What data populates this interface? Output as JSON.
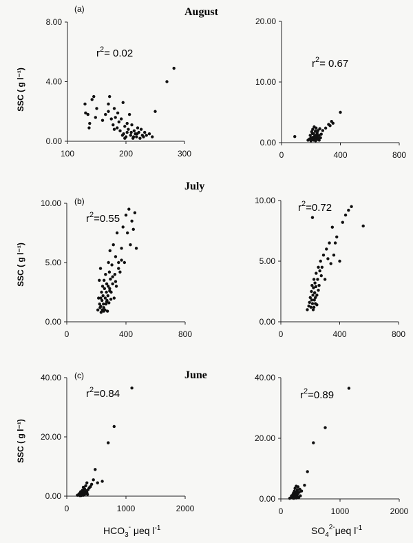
{
  "figure": {
    "rows": [
      {
        "tag": "(a)",
        "month": "August",
        "ylabel": "SSC ( g l⁻¹)"
      },
      {
        "tag": "(b)",
        "month": "July",
        "ylabel": "SSC ( g l⁻¹)"
      },
      {
        "tag": "(c)",
        "month": "June",
        "ylabel": "SSC ( g l⁻¹)"
      }
    ],
    "xlabels": {
      "left_base": "HCO",
      "left_sub": "3",
      "left_sup": "-",
      "left_tail": " μeq l",
      "left_exp": "-1",
      "right_base": "SO",
      "right_sub": "4",
      "right_sup": "2-",
      "right_tail": "μeq l",
      "right_exp": "-1"
    }
  },
  "chart_data": [
    {
      "type": "scatter",
      "panel": "a-left",
      "xlim": [
        100,
        300
      ],
      "ylim": [
        0,
        8
      ],
      "xticks": [
        "100",
        "200",
        "300"
      ],
      "yticks": [
        "0.00",
        "4.00",
        "8.00"
      ],
      "ytick_values": [
        0,
        4,
        8
      ],
      "xtick_values": [
        100,
        200,
        300
      ],
      "r2_base": "r",
      "r2_exp": "2",
      "r2_value": "= 0.02",
      "x": [
        130,
        135,
        138,
        142,
        145,
        148,
        131,
        137,
        150,
        160,
        165,
        170,
        172,
        175,
        178,
        180,
        182,
        185,
        188,
        190,
        192,
        195,
        196,
        198,
        200,
        202,
        204,
        206,
        208,
        210,
        212,
        214,
        216,
        218,
        220,
        222,
        224,
        226,
        228,
        230,
        232,
        235,
        240,
        245,
        250,
        270,
        282,
        170,
        180,
        186,
        194,
        198,
        202,
        209,
        213,
        219
      ],
      "y": [
        2.5,
        1.8,
        1.2,
        2.8,
        3.0,
        1.6,
        1.9,
        0.9,
        2.2,
        1.4,
        1.8,
        2.0,
        3.0,
        1.5,
        1.1,
        2.2,
        1.6,
        0.9,
        1.3,
        0.7,
        1.5,
        2.6,
        0.5,
        1.0,
        0.3,
        0.6,
        0.8,
        1.8,
        0.4,
        1.1,
        0.2,
        0.7,
        0.5,
        0.3,
        0.9,
        0.6,
        0.2,
        0.8,
        0.4,
        0.3,
        0.6,
        0.4,
        0.5,
        0.3,
        2.0,
        4.0,
        4.9,
        2.5,
        0.8,
        1.9,
        0.4,
        0.2,
        1.2,
        0.6,
        0.3,
        0.5
      ]
    },
    {
      "type": "scatter",
      "panel": "a-right",
      "xlim": [
        0,
        800
      ],
      "ylim": [
        0,
        20
      ],
      "xticks": [
        "0",
        "400",
        "800"
      ],
      "yticks": [
        "0.00",
        "10.00",
        "20.00"
      ],
      "ytick_values": [
        0,
        10,
        20
      ],
      "xtick_values": [
        0,
        400,
        800
      ],
      "r2_base": "r",
      "r2_exp": "2",
      "r2_value": "= 0.67",
      "x": [
        90,
        180,
        190,
        195,
        200,
        205,
        210,
        212,
        215,
        218,
        220,
        222,
        225,
        228,
        230,
        232,
        235,
        238,
        240,
        242,
        245,
        248,
        250,
        255,
        260,
        265,
        270,
        280,
        300,
        320,
        330,
        340,
        350,
        400,
        200,
        210,
        226,
        236,
        246,
        256
      ],
      "y": [
        1.0,
        0.4,
        0.6,
        1.2,
        0.3,
        1.8,
        0.5,
        2.2,
        0.9,
        1.5,
        0.4,
        2.6,
        1.1,
        0.7,
        1.9,
        0.3,
        2.4,
        1.3,
        0.6,
        1.6,
        0.9,
        2.0,
        0.5,
        1.2,
        2.3,
        0.8,
        1.4,
        2.0,
        2.4,
        3.0,
        2.8,
        3.5,
        3.2,
        5.0,
        0.8,
        1.5,
        0.5,
        1.0,
        0.7,
        0.4
      ]
    },
    {
      "type": "scatter",
      "panel": "b-left",
      "xlim": [
        0,
        800
      ],
      "ylim": [
        0,
        10
      ],
      "xticks": [
        "0",
        "400",
        "800"
      ],
      "yticks": [
        "0.00",
        "5.00",
        "10.00"
      ],
      "ytick_values": [
        0,
        5,
        10
      ],
      "xtick_values": [
        0,
        400,
        800
      ],
      "r2_base": "r",
      "r2_exp": "2",
      "r2_value": "=0.55",
      "x": [
        210,
        215,
        220,
        222,
        225,
        228,
        230,
        232,
        235,
        238,
        240,
        242,
        245,
        248,
        250,
        252,
        255,
        258,
        260,
        262,
        265,
        268,
        270,
        272,
        275,
        278,
        280,
        282,
        285,
        288,
        290,
        292,
        295,
        298,
        300,
        305,
        310,
        315,
        320,
        325,
        330,
        335,
        340,
        350,
        360,
        370,
        380,
        390,
        400,
        410,
        420,
        430,
        440,
        450,
        460,
        470,
        230,
        250,
        270,
        290,
        310,
        330,
        350,
        370
      ],
      "y": [
        1.0,
        2.0,
        3.5,
        1.5,
        1.2,
        4.5,
        2.0,
        0.8,
        2.5,
        1.8,
        1.0,
        3.0,
        2.2,
        1.5,
        1.2,
        3.5,
        2.8,
        1.0,
        2.0,
        4.0,
        1.5,
        2.5,
        3.2,
        1.8,
        0.9,
        2.2,
        3.0,
        5.0,
        1.6,
        4.2,
        2.8,
        6.0,
        3.6,
        1.9,
        2.5,
        4.8,
        3.2,
        6.5,
        2.0,
        4.0,
        5.5,
        3.0,
        7.5,
        5.0,
        4.2,
        6.2,
        8.0,
        5.0,
        9.0,
        7.5,
        9.5,
        6.5,
        8.5,
        7.8,
        9.2,
        6.2,
        1.3,
        0.9,
        1.7,
        2.6,
        3.8,
        3.4,
        4.5,
        5.2
      ]
    },
    {
      "type": "scatter",
      "panel": "b-right",
      "xlim": [
        0,
        800
      ],
      "ylim": [
        0,
        10
      ],
      "xticks": [
        "0",
        "400",
        "800"
      ],
      "yticks": [
        "0.00",
        "5.00",
        "10.00"
      ],
      "ytick_values": [
        0,
        5,
        10
      ],
      "xtick_values": [
        0,
        400,
        800
      ],
      "r2_base": "r",
      "r2_exp": "2",
      "r2_value": "=0.72",
      "x": [
        180,
        190,
        195,
        200,
        205,
        208,
        210,
        212,
        215,
        218,
        220,
        222,
        225,
        228,
        230,
        232,
        235,
        238,
        240,
        245,
        250,
        255,
        260,
        265,
        270,
        275,
        280,
        290,
        300,
        310,
        320,
        330,
        340,
        350,
        360,
        370,
        380,
        400,
        420,
        440,
        460,
        480,
        560,
        215,
        225,
        235,
        245,
        255
      ],
      "y": [
        1.0,
        1.3,
        1.6,
        2.0,
        1.2,
        2.5,
        1.8,
        3.0,
        1.5,
        2.2,
        1.0,
        2.8,
        3.5,
        1.8,
        2.4,
        3.2,
        1.5,
        2.9,
        4.0,
        2.2,
        3.5,
        4.5,
        3.0,
        4.2,
        5.0,
        3.8,
        4.5,
        5.5,
        3.5,
        6.0,
        5.2,
        6.5,
        4.8,
        7.8,
        5.5,
        6.5,
        7.0,
        5.0,
        8.2,
        8.8,
        9.2,
        9.5,
        7.9,
        8.6,
        1.2,
        2.0,
        1.4,
        2.6
      ]
    },
    {
      "type": "scatter",
      "panel": "c-left",
      "xlim": [
        0,
        2000
      ],
      "ylim": [
        0,
        40
      ],
      "xticks": [
        "0",
        "1000",
        "2000"
      ],
      "yticks": [
        "0.00",
        "20.00",
        "40.00"
      ],
      "ytick_values": [
        0,
        20,
        40
      ],
      "xtick_values": [
        0,
        1000,
        2000
      ],
      "r2_base": "r",
      "r2_exp": "2",
      "r2_value": "=0.84",
      "x": [
        180,
        200,
        210,
        220,
        225,
        230,
        235,
        240,
        245,
        250,
        255,
        260,
        265,
        270,
        275,
        280,
        285,
        290,
        295,
        300,
        310,
        320,
        330,
        340,
        350,
        360,
        380,
        400,
        420,
        450,
        480,
        520,
        600,
        700,
        800,
        1100,
        240,
        260,
        280,
        300,
        320,
        340
      ],
      "y": [
        0.3,
        0.5,
        0.8,
        0.2,
        1.0,
        0.6,
        1.5,
        0.4,
        0.9,
        1.2,
        0.3,
        0.7,
        2.0,
        0.5,
        1.1,
        3.0,
        0.8,
        1.6,
        0.4,
        2.5,
        1.0,
        3.5,
        1.8,
        4.5,
        0.6,
        2.2,
        2.8,
        3.2,
        4.0,
        5.5,
        9.0,
        4.5,
        5.0,
        18.0,
        23.5,
        36.5,
        0.2,
        0.4,
        0.3,
        0.6,
        0.9,
        1.3
      ]
    },
    {
      "type": "scatter",
      "panel": "c-right",
      "xlim": [
        0,
        2000
      ],
      "ylim": [
        0,
        40
      ],
      "xticks": [
        "0",
        "1000",
        "2000"
      ],
      "yticks": [
        "0.00",
        "20.00",
        "40.00"
      ],
      "ytick_values": [
        0,
        20,
        40
      ],
      "xtick_values": [
        0,
        1000,
        2000
      ],
      "r2_base": "r",
      "r2_exp": "2",
      "r2_value": "=0.89",
      "x": [
        150,
        170,
        180,
        190,
        200,
        205,
        210,
        215,
        220,
        225,
        230,
        235,
        240,
        245,
        250,
        255,
        260,
        265,
        270,
        275,
        280,
        285,
        290,
        300,
        310,
        320,
        330,
        350,
        400,
        450,
        550,
        750,
        1150,
        220,
        240,
        260,
        280,
        300
      ],
      "y": [
        0.2,
        0.4,
        1.0,
        0.6,
        0.3,
        1.5,
        0.8,
        2.0,
        0.5,
        1.2,
        2.6,
        0.4,
        3.5,
        0.9,
        1.8,
        0.6,
        4.2,
        1.2,
        2.4,
        0.8,
        3.0,
        1.6,
        4.0,
        0.5,
        2.2,
        3.2,
        1.0,
        2.6,
        4.5,
        9.0,
        18.5,
        23.5,
        36.5,
        0.2,
        0.5,
        0.3,
        0.7,
        0.4
      ]
    }
  ]
}
